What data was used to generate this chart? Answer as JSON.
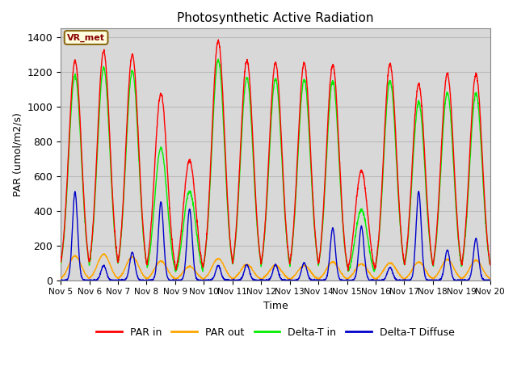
{
  "title": "Photosynthetic Active Radiation",
  "ylabel": "PAR (umol/m2/s)",
  "xlabel": "Time",
  "annotation": "VR_met",
  "ylim": [
    0,
    1450
  ],
  "legend_labels": [
    "PAR in",
    "PAR out",
    "Delta-T in",
    "Delta-T Diffuse"
  ],
  "legend_colors": [
    "#ff0000",
    "#ffa500",
    "#00ee00",
    "#0000cc"
  ],
  "tick_labels": [
    "Nov 5",
    "Nov 6",
    "Nov 7",
    "Nov 8",
    "Nov 9",
    "Nov 10",
    "Nov 11",
    "Nov 12",
    "Nov 13",
    "Nov 14",
    "Nov 15",
    "Nov 16",
    "Nov 17",
    "Nov 18",
    "Nov 19",
    "Nov 20"
  ],
  "grid_color": "#bbbbbb",
  "background_color": "#d8d8d8",
  "days": 15,
  "points_per_day": 144,
  "par_in_peaks": [
    1265,
    1320,
    1300,
    1075,
    690,
    1380,
    1265,
    1255,
    1250,
    1240,
    630,
    1245,
    1130,
    1190,
    1185
  ],
  "par_out_peaks": [
    140,
    150,
    135,
    110,
    80,
    125,
    90,
    85,
    85,
    105,
    95,
    100,
    105,
    120,
    115
  ],
  "delta_t_peaks": [
    1180,
    1220,
    1205,
    760,
    510,
    1270,
    1165,
    1160,
    1155,
    1145,
    405,
    1150,
    1025,
    1080,
    1075
  ],
  "delta_d_peaks": [
    510,
    85,
    160,
    450,
    410,
    85,
    90,
    90,
    100,
    300,
    310,
    75,
    510,
    175,
    240
  ]
}
